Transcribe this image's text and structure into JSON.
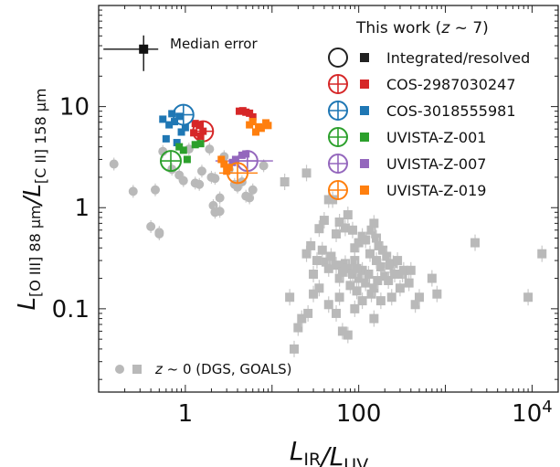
{
  "chart_data": {
    "type": "scatter",
    "title": "",
    "xlabel": "L_IR/L_UV",
    "ylabel": "L_[O III] 88 µm / L_[C II] 158 µm",
    "x_scale": "log",
    "y_scale": "log",
    "xlim": [
      0.1,
      20000
    ],
    "ylim": [
      0.015,
      100
    ],
    "x_ticks": [
      {
        "value": 1,
        "label": "1"
      },
      {
        "value": 100,
        "label": "100"
      },
      {
        "value": 10000,
        "label": "10",
        "sup": "4"
      }
    ],
    "y_ticks": [
      {
        "value": 0.1,
        "label": "0.1"
      },
      {
        "value": 1,
        "label": "1"
      },
      {
        "value": 10,
        "label": "10"
      }
    ],
    "grid": false,
    "legend": {
      "placement": "top-right",
      "title": "This work (z ~ 7)",
      "entries": [
        {
          "label": "Integrated/resolved",
          "color": "#222222"
        },
        {
          "label": "COS-2987030247",
          "color": "#d62728"
        },
        {
          "label": "COS-3018555981",
          "color": "#1f77b4"
        },
        {
          "label": "UVISTA-Z-001",
          "color": "#2ca02c"
        },
        {
          "label": "UVISTA-Z-007",
          "color": "#9467bd"
        },
        {
          "label": "UVISTA-Z-019",
          "color": "#ff7f0e"
        }
      ],
      "bottom_label": "z ~ 0 (DGS, GOALS)"
    },
    "median_error_label": "Median error",
    "median_error": {
      "x": 0.33,
      "y": 37
    },
    "series": [
      {
        "name": "COS-2987030247",
        "color": "#d62728",
        "integrated": {
          "x": 1.6,
          "y": 5.7
        },
        "resolved": [
          [
            1.25,
            5.5
          ],
          [
            1.45,
            6.5
          ],
          [
            1.6,
            5.7
          ],
          [
            1.3,
            6.8
          ],
          [
            1.5,
            5.1
          ],
          [
            4.2,
            9.0
          ],
          [
            4.6,
            9.1
          ],
          [
            5.5,
            8.6
          ],
          [
            6.0,
            7.9
          ],
          [
            5.0,
            8.8
          ]
        ]
      },
      {
        "name": "COS-3018555981",
        "color": "#1f77b4",
        "integrated": {
          "x": 0.95,
          "y": 8.3
        },
        "resolved": [
          [
            0.55,
            7.5
          ],
          [
            0.7,
            8.5
          ],
          [
            0.85,
            8.0
          ],
          [
            0.65,
            6.6
          ],
          [
            0.75,
            7.1
          ],
          [
            0.6,
            4.8
          ],
          [
            0.9,
            5.6
          ],
          [
            1.0,
            6.2
          ],
          [
            0.8,
            4.4
          ]
        ]
      },
      {
        "name": "UVISTA-Z-001",
        "color": "#2ca02c",
        "integrated": {
          "x": 0.68,
          "y": 2.9
        },
        "resolved": [
          [
            0.85,
            4.0
          ],
          [
            0.95,
            3.7
          ],
          [
            1.05,
            3.0
          ],
          [
            1.3,
            4.2
          ],
          [
            1.5,
            4.3
          ]
        ]
      },
      {
        "name": "UVISTA-Z-007",
        "color": "#9467bd",
        "integrated": {
          "x": 5.2,
          "y": 2.9
        },
        "resolved": [
          [
            4.5,
            3.3
          ],
          [
            5.0,
            3.4
          ],
          [
            3.5,
            2.8
          ],
          [
            3.8,
            3.0
          ]
        ]
      },
      {
        "name": "UVISTA-Z-019",
        "color": "#ff7f0e",
        "integrated": {
          "x": 4.0,
          "y": 2.2
        },
        "resolved": [
          [
            2.6,
            3.0
          ],
          [
            2.8,
            2.7
          ],
          [
            3.0,
            2.3
          ],
          [
            3.2,
            2.5
          ],
          [
            5.5,
            6.6
          ],
          [
            6.0,
            7.1
          ],
          [
            7.0,
            6.3
          ],
          [
            8.5,
            6.9
          ],
          [
            6.5,
            5.6
          ],
          [
            7.5,
            6.1
          ],
          [
            9.0,
            6.5
          ]
        ]
      }
    ],
    "z0_dgs_circles": [
      [
        0.15,
        2.7
      ],
      [
        0.25,
        1.45
      ],
      [
        0.45,
        1.5
      ],
      [
        0.4,
        0.65
      ],
      [
        0.5,
        0.57
      ],
      [
        0.5,
        0.55
      ],
      [
        0.55,
        3.6
      ],
      [
        0.7,
        2.4
      ],
      [
        0.85,
        2.1
      ],
      [
        0.95,
        1.85
      ],
      [
        1.1,
        3.8
      ],
      [
        1.3,
        1.75
      ],
      [
        1.45,
        1.7
      ],
      [
        1.55,
        2.3
      ],
      [
        2.0,
        2.0
      ],
      [
        2.2,
        1.95
      ],
      [
        2.5,
        1.25
      ],
      [
        2.1,
        1.05
      ],
      [
        2.2,
        0.9
      ],
      [
        2.5,
        0.92
      ],
      [
        3.2,
        2.4
      ],
      [
        3.7,
        1.7
      ],
      [
        4.0,
        1.6
      ],
      [
        4.5,
        1.8
      ],
      [
        5.5,
        1.25
      ],
      [
        5.0,
        1.3
      ],
      [
        6.0,
        1.5
      ],
      [
        8.0,
        2.6
      ],
      [
        2.8,
        3.2
      ],
      [
        1.9,
        3.8
      ]
    ],
    "z0_goals_squares": [
      [
        14,
        1.8
      ],
      [
        25,
        2.2
      ],
      [
        45,
        1.2
      ],
      [
        50,
        1.2
      ],
      [
        35,
        0.62
      ],
      [
        40,
        0.75
      ],
      [
        55,
        0.55
      ],
      [
        60,
        0.72
      ],
      [
        70,
        0.63
      ],
      [
        75,
        0.85
      ],
      [
        85,
        0.6
      ],
      [
        90,
        0.4
      ],
      [
        100,
        0.45
      ],
      [
        110,
        0.52
      ],
      [
        120,
        0.48
      ],
      [
        140,
        0.6
      ],
      [
        150,
        0.7
      ],
      [
        160,
        0.5
      ],
      [
        170,
        0.42
      ],
      [
        190,
        0.38
      ],
      [
        210,
        0.33
      ],
      [
        230,
        0.27
      ],
      [
        250,
        0.28
      ],
      [
        280,
        0.3
      ],
      [
        320,
        0.22
      ],
      [
        380,
        0.18
      ],
      [
        25,
        0.35
      ],
      [
        28,
        0.42
      ],
      [
        30,
        0.22
      ],
      [
        33,
        0.3
      ],
      [
        38,
        0.38
      ],
      [
        42,
        0.29
      ],
      [
        45,
        0.25
      ],
      [
        48,
        0.33
      ],
      [
        55,
        0.27
      ],
      [
        60,
        0.2
      ],
      [
        65,
        0.23
      ],
      [
        70,
        0.28
      ],
      [
        75,
        0.25
      ],
      [
        80,
        0.17
      ],
      [
        85,
        0.22
      ],
      [
        90,
        0.3
      ],
      [
        95,
        0.15
      ],
      [
        100,
        0.2
      ],
      [
        110,
        0.24
      ],
      [
        120,
        0.18
      ],
      [
        130,
        0.22
      ],
      [
        140,
        0.14
      ],
      [
        150,
        0.16
      ],
      [
        165,
        0.19
      ],
      [
        180,
        0.26
      ],
      [
        200,
        0.21
      ],
      [
        220,
        0.19
      ],
      [
        240,
        0.13
      ],
      [
        260,
        0.22
      ],
      [
        300,
        0.16
      ],
      [
        330,
        0.24
      ],
      [
        400,
        0.24
      ],
      [
        450,
        0.11
      ],
      [
        500,
        0.13
      ],
      [
        700,
        0.2
      ],
      [
        800,
        0.14
      ],
      [
        2200,
        0.45
      ],
      [
        13000,
        0.35
      ],
      [
        9000,
        0.13
      ],
      [
        16,
        0.13
      ],
      [
        18,
        0.04
      ],
      [
        20,
        0.065
      ],
      [
        22,
        0.08
      ],
      [
        55,
        0.09
      ],
      [
        65,
        0.06
      ],
      [
        75,
        0.055
      ],
      [
        45,
        0.11
      ],
      [
        60,
        0.13
      ],
      [
        90,
        0.1
      ],
      [
        110,
        0.12
      ],
      [
        150,
        0.08
      ],
      [
        35,
        0.16
      ],
      [
        180,
        0.12
      ],
      [
        26,
        0.09
      ],
      [
        30,
        0.14
      ],
      [
        95,
        0.25
      ],
      [
        135,
        0.35
      ],
      [
        160,
        0.3
      ]
    ]
  }
}
